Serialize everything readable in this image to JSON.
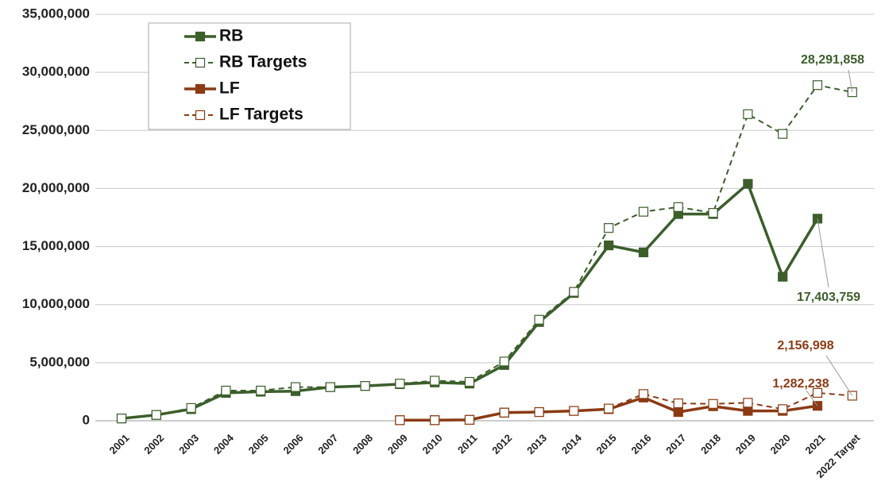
{
  "chart_data": {
    "type": "line",
    "categories": [
      "2001",
      "2002",
      "2003",
      "2004",
      "2005",
      "2006",
      "2007",
      "2008",
      "2009",
      "2010",
      "2011",
      "2012",
      "2013",
      "2014",
      "2015",
      "2016",
      "2017",
      "2018",
      "2019",
      "2020",
      "2021",
      "2022 Target"
    ],
    "ylim": [
      0,
      35000000
    ],
    "yticks": [
      0,
      {
        "value": 5000000,
        "label": "5,000,000"
      },
      {
        "value": 10000000,
        "label": "10,000,000"
      },
      {
        "value": 15000000,
        "label": "15,000,000"
      },
      {
        "value": 20000000,
        "label": "20,000,000"
      },
      {
        "value": 25000000,
        "label": "25,000,000"
      },
      {
        "value": 30000000,
        "label": "30,000,000"
      },
      {
        "value": 35000000,
        "label": "35,000,000"
      }
    ],
    "grid": true,
    "legend": "upper left",
    "series": [
      {
        "name": "RB",
        "color": "#3b5e2b",
        "dashed": false,
        "values": [
          200000,
          500000,
          1000000,
          2400000,
          2500000,
          2550000,
          2900000,
          3000000,
          3150000,
          3300000,
          3200000,
          4800000,
          8500000,
          11000000,
          15100000,
          14500000,
          17800000,
          17800000,
          20400000,
          12400000,
          17403759,
          null
        ],
        "value_labels": [
          null,
          null,
          null,
          null,
          null,
          null,
          null,
          null,
          null,
          null,
          null,
          null,
          null,
          null,
          null,
          null,
          null,
          null,
          null,
          null,
          "17,403,759",
          null
        ]
      },
      {
        "name": "RB Targets",
        "color": "#3b5e2b",
        "dashed": true,
        "values": [
          200000,
          500000,
          1100000,
          2600000,
          2600000,
          2900000,
          2900000,
          3000000,
          3200000,
          3450000,
          3350000,
          5100000,
          8700000,
          11100000,
          16600000,
          18000000,
          18400000,
          17900000,
          26400000,
          24700000,
          28900000,
          28291858
        ],
        "value_labels": [
          null,
          null,
          null,
          null,
          null,
          null,
          null,
          null,
          null,
          null,
          null,
          null,
          null,
          null,
          null,
          null,
          null,
          null,
          null,
          null,
          null,
          "28,291,858"
        ]
      },
      {
        "name": "LF",
        "color": "#8b3a14",
        "dashed": false,
        "values": [
          null,
          null,
          null,
          null,
          null,
          null,
          null,
          null,
          50000,
          50000,
          80000,
          700000,
          750000,
          850000,
          1000000,
          2000000,
          750000,
          1250000,
          850000,
          850000,
          1282238,
          null
        ],
        "value_labels": [
          null,
          null,
          null,
          null,
          null,
          null,
          null,
          null,
          null,
          null,
          null,
          null,
          null,
          null,
          null,
          null,
          null,
          null,
          null,
          null,
          "1,282,238",
          null
        ]
      },
      {
        "name": "LF Targets",
        "color": "#8b3a14",
        "dashed": true,
        "values": [
          null,
          null,
          null,
          null,
          null,
          null,
          null,
          null,
          50000,
          50000,
          80000,
          700000,
          750000,
          850000,
          1050000,
          2300000,
          1500000,
          1450000,
          1550000,
          1000000,
          2400000,
          2156998
        ],
        "value_labels": [
          null,
          null,
          null,
          null,
          null,
          null,
          null,
          null,
          null,
          null,
          null,
          null,
          null,
          null,
          null,
          null,
          null,
          null,
          null,
          null,
          null,
          "2,156,998"
        ]
      }
    ]
  }
}
